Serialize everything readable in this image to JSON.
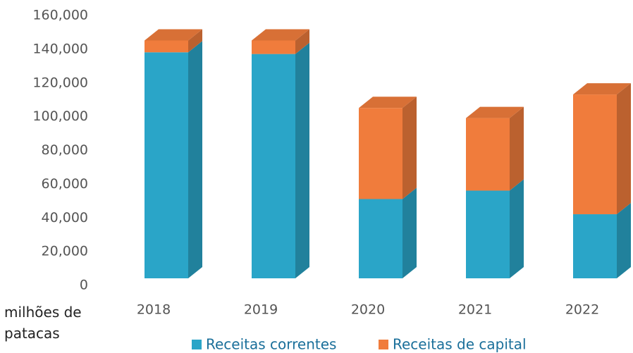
{
  "chart_data": {
    "type": "bar3d_stacked",
    "categories": [
      "2018",
      "2019",
      "2020",
      "2021",
      "2022"
    ],
    "series": [
      {
        "name": "Receitas correntes",
        "color": "#2aa5c8",
        "values": [
          134000,
          133000,
          47000,
          52000,
          38000
        ]
      },
      {
        "name": "Receitas de capital",
        "color": "#f07c3c",
        "values": [
          7000,
          8000,
          54000,
          43000,
          71000
        ]
      }
    ],
    "ylim": [
      0,
      160000
    ],
    "yticks": [
      0,
      {
        "value": 20000,
        "label": "20,000"
      },
      {
        "value": 40000,
        "label": "40,000"
      },
      {
        "value": 60000,
        "label": "60,000"
      },
      {
        "value": 80000,
        "label": "80,000"
      },
      {
        "value": 100000,
        "label": "100,000"
      },
      {
        "value": 120000,
        "label": "120,000"
      },
      {
        "value": 140000,
        "label": "140,000"
      },
      {
        "value": 160000,
        "label": "160,000"
      }
    ],
    "y_unit_label": "milhões de patacas"
  }
}
